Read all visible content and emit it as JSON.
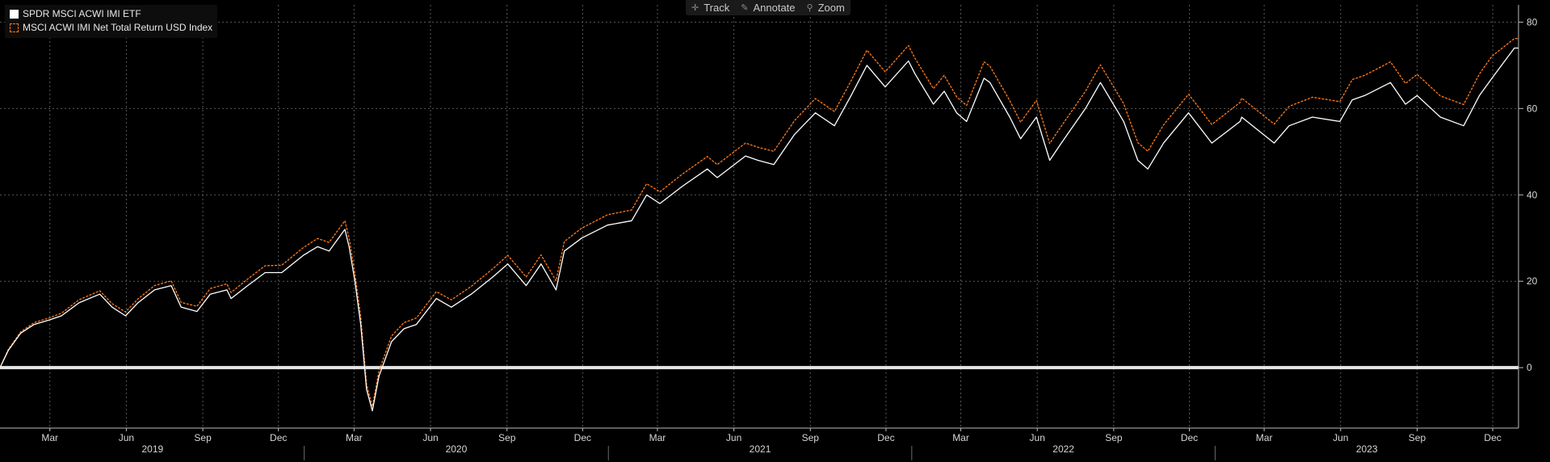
{
  "toolbar": {
    "track_label": "Track",
    "annotate_label": "Annotate",
    "zoom_label": "Zoom"
  },
  "chart_data": {
    "type": "line",
    "title": "",
    "xlabel": "",
    "ylabel": "",
    "ylim": [
      -14,
      84
    ],
    "y_ticks": [
      0,
      20,
      40,
      60,
      80
    ],
    "grid": true,
    "legend_position": "top-left",
    "axis_side": "right",
    "x_range": [
      "2018-12-31",
      "2024-01-01"
    ],
    "x_month_labels": [
      {
        "date": "2019-03-01",
        "label": "Mar"
      },
      {
        "date": "2019-06-01",
        "label": "Jun"
      },
      {
        "date": "2019-09-01",
        "label": "Sep"
      },
      {
        "date": "2019-12-01",
        "label": "Dec"
      },
      {
        "date": "2020-03-01",
        "label": "Mar"
      },
      {
        "date": "2020-06-01",
        "label": "Jun"
      },
      {
        "date": "2020-09-01",
        "label": "Sep"
      },
      {
        "date": "2020-12-01",
        "label": "Dec"
      },
      {
        "date": "2021-03-01",
        "label": "Mar"
      },
      {
        "date": "2021-06-01",
        "label": "Jun"
      },
      {
        "date": "2021-09-01",
        "label": "Sep"
      },
      {
        "date": "2021-12-01",
        "label": "Dec"
      },
      {
        "date": "2022-03-01",
        "label": "Mar"
      },
      {
        "date": "2022-06-01",
        "label": "Jun"
      },
      {
        "date": "2022-09-01",
        "label": "Sep"
      },
      {
        "date": "2022-12-01",
        "label": "Dec"
      },
      {
        "date": "2023-03-01",
        "label": "Mar"
      },
      {
        "date": "2023-06-01",
        "label": "Jun"
      },
      {
        "date": "2023-09-01",
        "label": "Sep"
      },
      {
        "date": "2023-12-01",
        "label": "Dec"
      }
    ],
    "x_year_labels": [
      {
        "year": "2019",
        "start": "2019-01-01",
        "end": "2020-01-01"
      },
      {
        "year": "2020",
        "start": "2020-01-01",
        "end": "2021-01-01"
      },
      {
        "year": "2021",
        "start": "2021-01-01",
        "end": "2022-01-01"
      },
      {
        "year": "2022",
        "start": "2022-01-01",
        "end": "2023-01-01"
      },
      {
        "year": "2023",
        "start": "2023-01-01",
        "end": "2024-01-01"
      }
    ],
    "series": [
      {
        "name": "SPDR MSCI ACWI IMI ETF",
        "color": "#ffffff",
        "style": "solid",
        "points": [
          [
            "2018-12-31",
            0
          ],
          [
            "2019-01-10",
            4
          ],
          [
            "2019-01-25",
            8
          ],
          [
            "2019-02-10",
            10
          ],
          [
            "2019-02-28",
            11
          ],
          [
            "2019-03-15",
            12
          ],
          [
            "2019-04-05",
            15
          ],
          [
            "2019-04-30",
            17
          ],
          [
            "2019-05-15",
            14
          ],
          [
            "2019-05-31",
            12
          ],
          [
            "2019-06-15",
            15
          ],
          [
            "2019-07-05",
            18
          ],
          [
            "2019-07-25",
            19
          ],
          [
            "2019-08-06",
            14
          ],
          [
            "2019-08-25",
            13
          ],
          [
            "2019-09-10",
            17
          ],
          [
            "2019-09-30",
            18
          ],
          [
            "2019-10-05",
            16
          ],
          [
            "2019-10-25",
            19
          ],
          [
            "2019-11-15",
            22
          ],
          [
            "2019-12-05",
            22
          ],
          [
            "2019-12-31",
            26
          ],
          [
            "2020-01-17",
            28
          ],
          [
            "2020-01-31",
            27
          ],
          [
            "2020-02-19",
            32
          ],
          [
            "2020-02-24",
            28
          ],
          [
            "2020-03-02",
            20
          ],
          [
            "2020-03-09",
            10
          ],
          [
            "2020-03-16",
            -5
          ],
          [
            "2020-03-23",
            -10
          ],
          [
            "2020-03-31",
            -2
          ],
          [
            "2020-04-15",
            6
          ],
          [
            "2020-04-30",
            9
          ],
          [
            "2020-05-15",
            10
          ],
          [
            "2020-06-08",
            16
          ],
          [
            "2020-06-26",
            14
          ],
          [
            "2020-07-20",
            17
          ],
          [
            "2020-08-15",
            21
          ],
          [
            "2020-09-02",
            24
          ],
          [
            "2020-09-24",
            19
          ],
          [
            "2020-10-12",
            24
          ],
          [
            "2020-10-30",
            18
          ],
          [
            "2020-11-09",
            27
          ],
          [
            "2020-11-30",
            30
          ],
          [
            "2020-12-31",
            33
          ],
          [
            "2021-01-29",
            34
          ],
          [
            "2021-02-16",
            40
          ],
          [
            "2021-03-04",
            38
          ],
          [
            "2021-03-31",
            42
          ],
          [
            "2021-04-30",
            46
          ],
          [
            "2021-05-12",
            44
          ],
          [
            "2021-06-15",
            49
          ],
          [
            "2021-06-30",
            48
          ],
          [
            "2021-07-19",
            47
          ],
          [
            "2021-08-13",
            54
          ],
          [
            "2021-09-07",
            59
          ],
          [
            "2021-09-30",
            56
          ],
          [
            "2021-10-20",
            63
          ],
          [
            "2021-11-08",
            70
          ],
          [
            "2021-11-30",
            65
          ],
          [
            "2021-12-28",
            71
          ],
          [
            "2022-01-05",
            68
          ],
          [
            "2022-01-27",
            61
          ],
          [
            "2022-02-09",
            64
          ],
          [
            "2022-02-24",
            59
          ],
          [
            "2022-03-08",
            57
          ],
          [
            "2022-03-29",
            67
          ],
          [
            "2022-04-05",
            66
          ],
          [
            "2022-04-29",
            58
          ],
          [
            "2022-05-12",
            53
          ],
          [
            "2022-05-31",
            58
          ],
          [
            "2022-06-16",
            48
          ],
          [
            "2022-06-30",
            52
          ],
          [
            "2022-07-29",
            60
          ],
          [
            "2022-08-16",
            66
          ],
          [
            "2022-09-13",
            57
          ],
          [
            "2022-09-30",
            48
          ],
          [
            "2022-10-12",
            46
          ],
          [
            "2022-10-31",
            52
          ],
          [
            "2022-11-30",
            59
          ],
          [
            "2022-12-28",
            52
          ],
          [
            "2023-01-31",
            57
          ],
          [
            "2023-02-02",
            58
          ],
          [
            "2023-03-13",
            52
          ],
          [
            "2023-03-31",
            56
          ],
          [
            "2023-04-28",
            58
          ],
          [
            "2023-05-31",
            57
          ],
          [
            "2023-06-15",
            62
          ],
          [
            "2023-06-30",
            63
          ],
          [
            "2023-07-31",
            66
          ],
          [
            "2023-08-18",
            61
          ],
          [
            "2023-09-01",
            63
          ],
          [
            "2023-09-29",
            58
          ],
          [
            "2023-10-27",
            56
          ],
          [
            "2023-11-15",
            63
          ],
          [
            "2023-11-30",
            67
          ],
          [
            "2023-12-27",
            74
          ],
          [
            "2024-01-01",
            74
          ]
        ]
      },
      {
        "name": "MSCI ACWI IMI Net Total Return USD Index",
        "color": "#ff7a1a",
        "style": "dashed",
        "points": [
          [
            "2018-12-31",
            0
          ],
          [
            "2019-01-10",
            4.2
          ],
          [
            "2019-01-25",
            8.3
          ],
          [
            "2019-02-10",
            10.4
          ],
          [
            "2019-02-28",
            11.5
          ],
          [
            "2019-03-15",
            12.6
          ],
          [
            "2019-04-05",
            15.7
          ],
          [
            "2019-04-30",
            17.8
          ],
          [
            "2019-05-15",
            14.8
          ],
          [
            "2019-05-31",
            12.9
          ],
          [
            "2019-06-15",
            15.9
          ],
          [
            "2019-07-05",
            19
          ],
          [
            "2019-07-25",
            20.1
          ],
          [
            "2019-08-06",
            15.1
          ],
          [
            "2019-08-25",
            14.2
          ],
          [
            "2019-09-10",
            18.3
          ],
          [
            "2019-09-30",
            19.4
          ],
          [
            "2019-10-05",
            17.4
          ],
          [
            "2019-10-25",
            20.5
          ],
          [
            "2019-11-15",
            23.6
          ],
          [
            "2019-12-05",
            23.7
          ],
          [
            "2019-12-31",
            27.8
          ],
          [
            "2020-01-17",
            29.9
          ],
          [
            "2020-01-31",
            29
          ],
          [
            "2020-02-19",
            34
          ],
          [
            "2020-02-24",
            30
          ],
          [
            "2020-03-02",
            21.8
          ],
          [
            "2020-03-09",
            11.8
          ],
          [
            "2020-03-16",
            -3.8
          ],
          [
            "2020-03-23",
            -9
          ],
          [
            "2020-03-31",
            -0.8
          ],
          [
            "2020-04-15",
            7.3
          ],
          [
            "2020-04-30",
            10.4
          ],
          [
            "2020-05-15",
            11.5
          ],
          [
            "2020-06-08",
            17.6
          ],
          [
            "2020-06-26",
            15.7
          ],
          [
            "2020-07-20",
            18.8
          ],
          [
            "2020-08-15",
            22.9
          ],
          [
            "2020-09-02",
            26
          ],
          [
            "2020-09-24",
            21
          ],
          [
            "2020-10-12",
            26.1
          ],
          [
            "2020-10-30",
            20.1
          ],
          [
            "2020-11-09",
            29.2
          ],
          [
            "2020-11-30",
            32.3
          ],
          [
            "2020-12-31",
            35.4
          ],
          [
            "2021-01-29",
            36.5
          ],
          [
            "2021-02-16",
            42.6
          ],
          [
            "2021-03-04",
            40.7
          ],
          [
            "2021-03-31",
            44.8
          ],
          [
            "2021-04-30",
            48.9
          ],
          [
            "2021-05-12",
            47
          ],
          [
            "2021-06-15",
            52
          ],
          [
            "2021-06-30",
            51
          ],
          [
            "2021-07-19",
            50.1
          ],
          [
            "2021-08-13",
            57.2
          ],
          [
            "2021-09-07",
            62.3
          ],
          [
            "2021-09-30",
            59.3
          ],
          [
            "2021-10-20",
            66.4
          ],
          [
            "2021-11-08",
            73.5
          ],
          [
            "2021-11-30",
            68.5
          ],
          [
            "2021-12-28",
            74.6
          ],
          [
            "2022-01-05",
            71.6
          ],
          [
            "2022-01-27",
            64.6
          ],
          [
            "2022-02-09",
            67.7
          ],
          [
            "2022-02-24",
            62.7
          ],
          [
            "2022-03-08",
            60.7
          ],
          [
            "2022-03-29",
            70.8
          ],
          [
            "2022-04-05",
            69.8
          ],
          [
            "2022-04-29",
            61.8
          ],
          [
            "2022-05-12",
            56.8
          ],
          [
            "2022-05-31",
            61.9
          ],
          [
            "2022-06-16",
            51.9
          ],
          [
            "2022-06-30",
            55.9
          ],
          [
            "2022-07-29",
            64
          ],
          [
            "2022-08-16",
            70.1
          ],
          [
            "2022-09-13",
            61.1
          ],
          [
            "2022-09-30",
            52.1
          ],
          [
            "2022-10-12",
            50.1
          ],
          [
            "2022-10-31",
            56.2
          ],
          [
            "2022-11-30",
            63.3
          ],
          [
            "2022-12-28",
            56.3
          ],
          [
            "2023-01-31",
            61.4
          ],
          [
            "2023-02-02",
            62.4
          ],
          [
            "2023-03-13",
            56.4
          ],
          [
            "2023-03-31",
            60.5
          ],
          [
            "2023-04-28",
            62.6
          ],
          [
            "2023-05-31",
            61.6
          ],
          [
            "2023-06-15",
            66.7
          ],
          [
            "2023-06-30",
            67.7
          ],
          [
            "2023-07-31",
            70.8
          ],
          [
            "2023-08-18",
            65.8
          ],
          [
            "2023-09-01",
            67.9
          ],
          [
            "2023-09-29",
            62.9
          ],
          [
            "2023-10-27",
            60.9
          ],
          [
            "2023-11-15",
            68
          ],
          [
            "2023-11-30",
            72.1
          ],
          [
            "2023-12-27",
            76.2
          ],
          [
            "2024-01-01",
            76.2
          ]
        ]
      }
    ]
  }
}
